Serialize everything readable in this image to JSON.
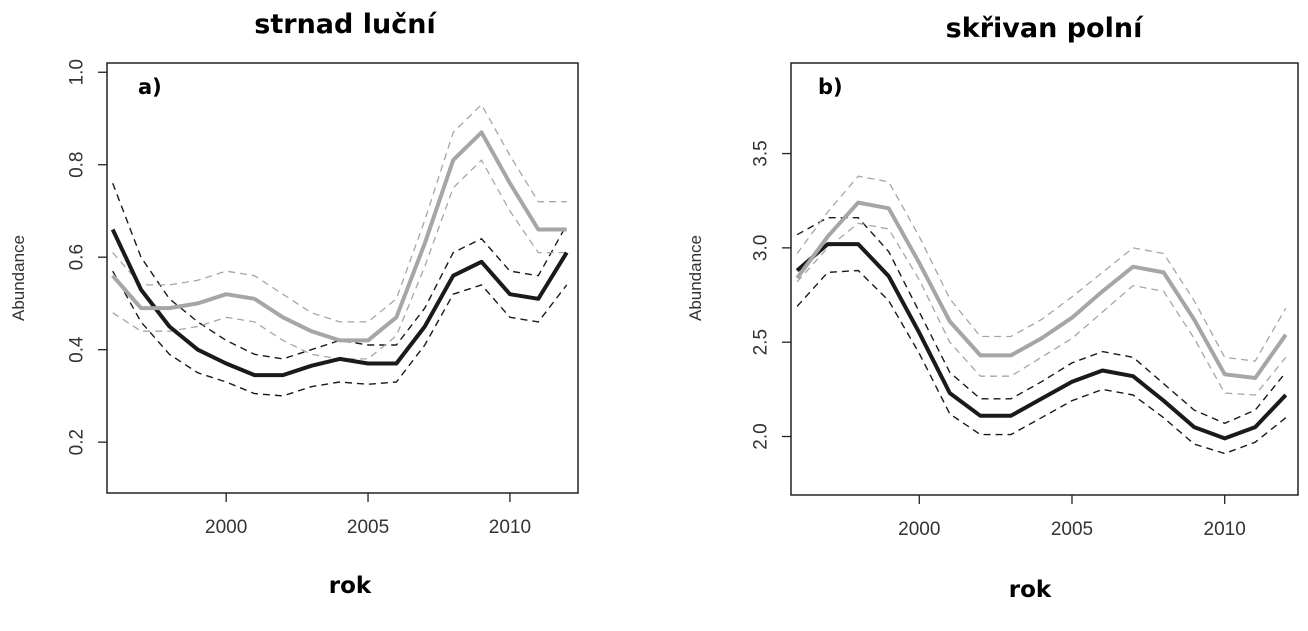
{
  "chart_data": [
    {
      "type": "line",
      "title": "strnad luční",
      "panel_label": "a)",
      "xlabel": "rok",
      "ylabel": "Abundance",
      "xlim": [
        1995.8,
        2012.4
      ],
      "ylim": [
        0.09,
        1.02
      ],
      "xticks": [
        2000,
        2005,
        2010
      ],
      "yticks": [
        0.2,
        0.4,
        0.6,
        0.8,
        1.0
      ],
      "ytick_labels": [
        "0.2",
        "0.4",
        "0.6",
        "0.8",
        "1.0"
      ],
      "grid": false,
      "x": [
        1996,
        1997,
        1998,
        1999,
        2000,
        2001,
        2002,
        2003,
        2004,
        2005,
        2006,
        2007,
        2008,
        2009,
        2010,
        2011,
        2012
      ],
      "series": [
        {
          "color": "#1a1a1a",
          "style": "solid",
          "width": 4,
          "values": [
            0.66,
            0.53,
            0.45,
            0.4,
            0.37,
            0.345,
            0.345,
            0.365,
            0.38,
            0.37,
            0.37,
            0.45,
            0.56,
            0.59,
            0.52,
            0.51,
            0.61
          ]
        },
        {
          "color": "#1a1a1a",
          "style": "dashed",
          "width": 1.4,
          "values": [
            0.76,
            0.6,
            0.51,
            0.46,
            0.42,
            0.39,
            0.38,
            0.4,
            0.42,
            0.41,
            0.41,
            0.49,
            0.61,
            0.64,
            0.57,
            0.56,
            0.67
          ]
        },
        {
          "color": "#1a1a1a",
          "style": "dashed",
          "width": 1.4,
          "values": [
            0.57,
            0.46,
            0.39,
            0.35,
            0.33,
            0.305,
            0.3,
            0.32,
            0.33,
            0.325,
            0.33,
            0.41,
            0.52,
            0.54,
            0.47,
            0.46,
            0.54
          ]
        },
        {
          "color": "#a6a6a6",
          "style": "solid",
          "width": 4,
          "values": [
            0.56,
            0.49,
            0.49,
            0.5,
            0.52,
            0.51,
            0.47,
            0.44,
            0.42,
            0.42,
            0.47,
            0.63,
            0.81,
            0.87,
            0.76,
            0.66,
            0.66
          ]
        },
        {
          "color": "#a6a6a6",
          "style": "dashed",
          "width": 1.3,
          "values": [
            0.61,
            0.54,
            0.54,
            0.55,
            0.57,
            0.56,
            0.52,
            0.48,
            0.46,
            0.46,
            0.51,
            0.68,
            0.87,
            0.93,
            0.82,
            0.72,
            0.72
          ]
        },
        {
          "color": "#a6a6a6",
          "style": "dashed",
          "width": 1.3,
          "values": [
            0.48,
            0.44,
            0.44,
            0.45,
            0.47,
            0.46,
            0.42,
            0.39,
            0.38,
            0.38,
            0.43,
            0.58,
            0.75,
            0.81,
            0.7,
            0.61,
            0.61
          ]
        }
      ]
    },
    {
      "type": "line",
      "title": "skřivan polní",
      "panel_label": "b)",
      "xlabel": "rok",
      "ylabel": "Abundance",
      "xlim": [
        1995.8,
        2012.4
      ],
      "ylim": [
        1.69,
        3.98
      ],
      "xticks": [
        2000,
        2005,
        2010
      ],
      "yticks": [
        2.0,
        2.5,
        3.0,
        3.5
      ],
      "ytick_labels": [
        "2.0",
        "2.5",
        "3.0",
        "3.5"
      ],
      "grid": false,
      "x": [
        1996,
        1997,
        1998,
        1999,
        2000,
        2001,
        2002,
        2003,
        2004,
        2005,
        2006,
        2007,
        2008,
        2009,
        2010,
        2011,
        2012
      ],
      "series": [
        {
          "color": "#1a1a1a",
          "style": "solid",
          "width": 4,
          "values": [
            2.88,
            3.02,
            3.02,
            2.85,
            2.55,
            2.23,
            2.11,
            2.11,
            2.2,
            2.29,
            2.35,
            2.32,
            2.19,
            2.05,
            1.99,
            2.05,
            2.22
          ]
        },
        {
          "color": "#1a1a1a",
          "style": "dashed",
          "width": 1.4,
          "values": [
            3.07,
            3.16,
            3.16,
            2.98,
            2.66,
            2.34,
            2.2,
            2.2,
            2.29,
            2.39,
            2.45,
            2.42,
            2.28,
            2.14,
            2.07,
            2.14,
            2.34
          ]
        },
        {
          "color": "#1a1a1a",
          "style": "dashed",
          "width": 1.4,
          "values": [
            2.69,
            2.87,
            2.88,
            2.72,
            2.44,
            2.12,
            2.01,
            2.01,
            2.1,
            2.19,
            2.25,
            2.22,
            2.1,
            1.96,
            1.91,
            1.97,
            2.1
          ]
        },
        {
          "color": "#a6a6a6",
          "style": "solid",
          "width": 4,
          "values": [
            2.84,
            3.06,
            3.24,
            3.21,
            2.92,
            2.61,
            2.43,
            2.43,
            2.52,
            2.63,
            2.77,
            2.9,
            2.87,
            2.62,
            2.33,
            2.31,
            2.54
          ]
        },
        {
          "color": "#a6a6a6",
          "style": "dashed",
          "width": 1.3,
          "values": [
            2.97,
            3.19,
            3.38,
            3.35,
            3.06,
            2.73,
            2.53,
            2.53,
            2.62,
            2.74,
            2.87,
            3.0,
            2.97,
            2.72,
            2.42,
            2.4,
            2.68
          ]
        },
        {
          "color": "#a6a6a6",
          "style": "dashed",
          "width": 1.3,
          "values": [
            2.82,
            3.0,
            3.13,
            3.1,
            2.83,
            2.5,
            2.32,
            2.32,
            2.42,
            2.52,
            2.66,
            2.8,
            2.77,
            2.52,
            2.23,
            2.22,
            2.42
          ]
        }
      ]
    }
  ]
}
